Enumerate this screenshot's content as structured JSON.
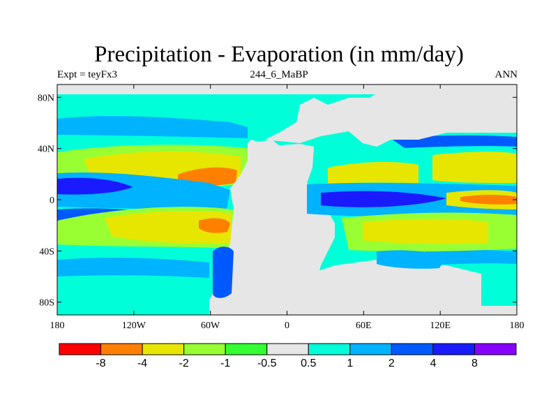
{
  "title": "Precipitation - Evaporation (in mm/day)",
  "subtitle_left": "Expt = teyFx3",
  "subtitle_center": "244_6_MaBP",
  "subtitle_right": "ANN",
  "map": {
    "projection": "cylindrical equidistant",
    "lon_range": [
      -180,
      180
    ],
    "lat_range": [
      -90,
      90
    ],
    "land_fill_color": "#e6e6e6",
    "lat_ticks": [
      {
        "value": 80,
        "label": "80N"
      },
      {
        "value": 40,
        "label": "40N"
      },
      {
        "value": 0,
        "label": "0"
      },
      {
        "value": -40,
        "label": "40S"
      },
      {
        "value": -80,
        "label": "80S"
      }
    ],
    "lon_ticks": [
      {
        "value": -180,
        "label": "180"
      },
      {
        "value": -120,
        "label": "120W"
      },
      {
        "value": -60,
        "label": "60W"
      },
      {
        "value": 0,
        "label": "0"
      },
      {
        "value": 60,
        "label": "60E"
      },
      {
        "value": 120,
        "label": "120E"
      },
      {
        "value": 180,
        "label": "180"
      }
    ]
  },
  "colorbar": {
    "colors": [
      "#ff0000",
      "#ff8000",
      "#e6e600",
      "#99ff33",
      "#33ff33",
      "#e6e6e6",
      "#00ffd9",
      "#00b3ff",
      "#0059ff",
      "#1a1aff",
      "#8800ff"
    ],
    "labels": [
      "-8",
      "-4",
      "-2",
      "-1",
      "-0.5",
      "0.5",
      "1",
      "2",
      "4",
      "8"
    ]
  }
}
